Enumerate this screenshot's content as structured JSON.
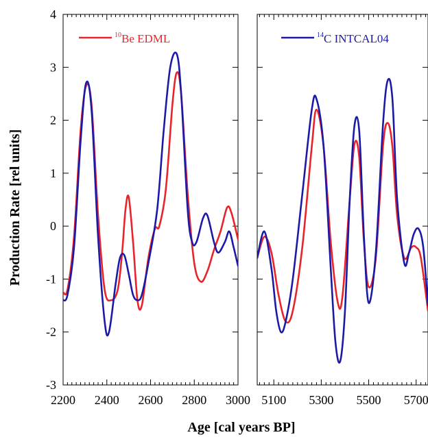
{
  "chart_data": {
    "type": "line",
    "xlabel": "Age [cal years BP]",
    "ylabel": "Production Rate [rel units]",
    "ylim": [
      -3,
      4
    ],
    "yticks": [
      -3,
      -2,
      -1,
      0,
      1,
      2,
      3,
      4
    ],
    "colors": {
      "be": "#e8232a",
      "c14": "#1a1aa6"
    },
    "legend": [
      {
        "sup": "10",
        "name": "Be EDML",
        "color": "#e8232a"
      },
      {
        "sup": "14",
        "name": "C INTCAL04",
        "color": "#1a1aa6"
      }
    ],
    "panels": [
      {
        "xlim": [
          2200,
          3000
        ],
        "xticks": [
          2200,
          2400,
          2600,
          2800,
          3000
        ],
        "legend_index": 0,
        "series": [
          {
            "key": "be",
            "name": "Be EDML",
            "x": [
              2200,
              2220,
              2250,
              2280,
              2305,
              2330,
              2360,
              2390,
              2420,
              2450,
              2470,
              2485,
              2500,
              2520,
              2540,
              2560,
              2590,
              2620,
              2640,
              2670,
              2700,
              2720,
              2740,
              2770,
              2800,
              2830,
              2860,
              2890,
              2920,
              2950,
              2970,
              3000
            ],
            "y": [
              -1.25,
              -1.2,
              -0.2,
              1.8,
              2.65,
              2.3,
              0.2,
              -1.2,
              -1.4,
              -1.2,
              -0.5,
              0.3,
              0.55,
              -0.3,
              -1.4,
              -1.5,
              -0.6,
              -0.05,
              0.0,
              0.7,
              2.3,
              2.9,
              2.5,
              0.6,
              -0.7,
              -1.05,
              -0.85,
              -0.45,
              -0.1,
              0.35,
              0.25,
              -0.25
            ]
          },
          {
            "key": "c14",
            "name": "C INTCAL04",
            "x": [
              2200,
              2220,
              2250,
              2280,
              2305,
              2330,
              2360,
              2390,
              2410,
              2440,
              2460,
              2480,
              2500,
              2520,
              2540,
              2560,
              2590,
              2630,
              2660,
              2690,
              2720,
              2740,
              2770,
              2790,
              2810,
              2840,
              2860,
              2890,
              2910,
              2940,
              2960,
              2980,
              3000
            ],
            "y": [
              -1.4,
              -1.3,
              -0.4,
              1.6,
              2.7,
              2.2,
              -0.2,
              -1.8,
              -2.0,
              -1.1,
              -0.6,
              -0.55,
              -0.9,
              -1.3,
              -1.4,
              -1.3,
              -0.7,
              0.3,
              1.8,
              3.0,
              3.25,
              2.5,
              0.3,
              -0.3,
              -0.3,
              0.15,
              0.2,
              -0.3,
              -0.5,
              -0.3,
              -0.1,
              -0.4,
              -0.75
            ]
          }
        ]
      },
      {
        "xlim": [
          5030,
          5750
        ],
        "xticks": [
          5100,
          5300,
          5500,
          5700
        ],
        "legend_index": 1,
        "series": [
          {
            "key": "be",
            "name": "Be EDML",
            "x": [
              5030,
              5060,
              5090,
              5120,
              5150,
              5180,
              5220,
              5260,
              5280,
              5310,
              5340,
              5370,
              5390,
              5420,
              5440,
              5460,
              5480,
              5500,
              5530,
              5560,
              5580,
              5600,
              5620,
              5650,
              5680,
              5700,
              5720,
              5750
            ],
            "y": [
              -0.6,
              -0.2,
              -0.5,
              -1.3,
              -1.8,
              -1.6,
              -0.4,
              1.5,
              2.2,
              1.5,
              -0.3,
              -1.45,
              -1.3,
              0.5,
              1.55,
              1.3,
              -0.3,
              -1.15,
              -0.6,
              1.5,
              1.95,
              1.5,
              0.2,
              -0.6,
              -0.4,
              -0.4,
              -0.6,
              -1.6
            ]
          },
          {
            "key": "c14",
            "name": "C INTCAL04",
            "x": [
              5030,
              5060,
              5090,
              5110,
              5130,
              5150,
              5180,
              5220,
              5260,
              5280,
              5310,
              5340,
              5360,
              5380,
              5400,
              5420,
              5440,
              5460,
              5480,
              5500,
              5530,
              5560,
              5580,
              5600,
              5620,
              5650,
              5670,
              5690,
              5710,
              5730,
              5750
            ],
            "y": [
              -0.6,
              -0.1,
              -0.8,
              -1.6,
              -2.0,
              -1.8,
              -1.0,
              0.6,
              2.2,
              2.4,
              1.5,
              -0.8,
              -2.2,
              -2.55,
              -1.6,
              0.5,
              1.9,
              1.8,
              -0.2,
              -1.45,
              -0.5,
              1.9,
              2.75,
              2.4,
              0.5,
              -0.7,
              -0.5,
              -0.15,
              -0.05,
              -0.4,
              -1.5
            ]
          }
        ]
      }
    ]
  }
}
